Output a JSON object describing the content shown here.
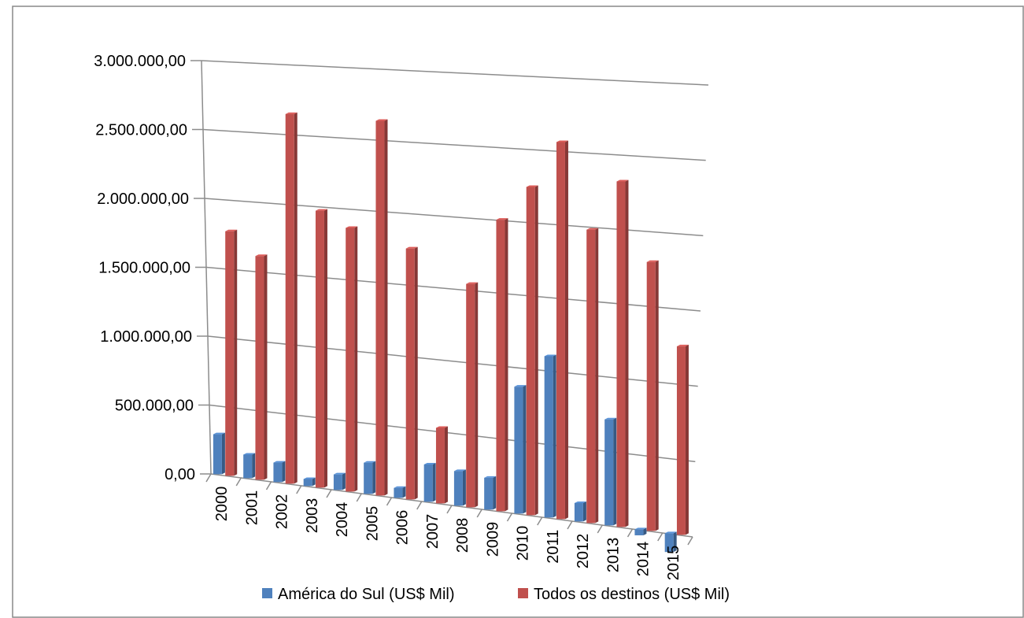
{
  "chart_data": {
    "type": "bar",
    "title": "",
    "xlabel": "",
    "ylabel": "",
    "categories": [
      "2000",
      "2001",
      "2002",
      "2003",
      "2004",
      "2005",
      "2006",
      "2007",
      "2008",
      "2009",
      "2010",
      "2011",
      "2012",
      "2013",
      "2014",
      "2015"
    ],
    "series": [
      {
        "name": "América do Sul (US$ Mil)",
        "color": "#4f81bd",
        "values": [
          290000,
          170000,
          140000,
          50000,
          110000,
          220000,
          70000,
          260000,
          240000,
          220000,
          870000,
          1100000,
          125000,
          715000,
          -40000,
          -125000
        ]
      },
      {
        "name": "Todos os destinos (US$ Mil)",
        "color": "#c0504d",
        "values": [
          1770000,
          1610000,
          2645000,
          1970000,
          1865000,
          2635000,
          1755000,
          525000,
          1545000,
          2005000,
          2245000,
          2565000,
          1985000,
          2325000,
          1800000,
          1255000
        ]
      }
    ],
    "ylim": [
      0,
      3000000
    ],
    "yticks": [
      "0,00",
      "500.000,00",
      "1.000.000,00",
      "1.500.000,00",
      "2.000.000,00",
      "2.500.000,00",
      "3.000.000,00"
    ],
    "grid": true,
    "legend_position": "bottom"
  }
}
